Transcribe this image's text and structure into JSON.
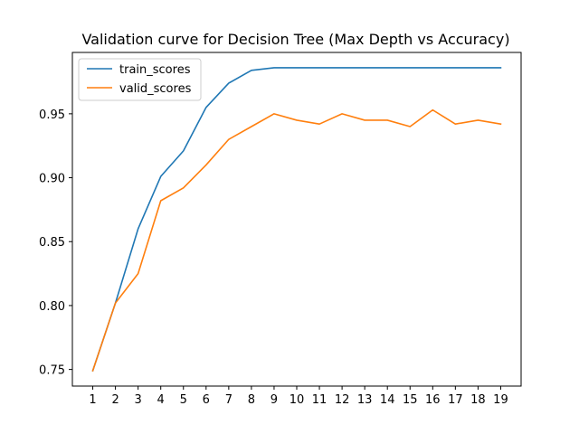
{
  "chart_data": {
    "type": "line",
    "title": "Validation curve for Decision Tree (Max Depth vs Accuracy)",
    "xlabel": "",
    "ylabel": "",
    "x": [
      1,
      2,
      3,
      4,
      5,
      6,
      7,
      8,
      9,
      10,
      11,
      12,
      13,
      14,
      15,
      16,
      17,
      18,
      19
    ],
    "x_tick_labels": [
      "1",
      "2",
      "3",
      "4",
      "5",
      "6",
      "7",
      "8",
      "9",
      "10",
      "11",
      "12",
      "13",
      "14",
      "15",
      "16",
      "17",
      "18",
      "19"
    ],
    "xlim": [
      0.1,
      19.9
    ],
    "ylim": [
      0.737,
      0.998
    ],
    "y_ticks": [
      0.75,
      0.8,
      0.85,
      0.9,
      0.95
    ],
    "y_tick_labels": [
      "0.75",
      "0.80",
      "0.85",
      "0.90",
      "0.95"
    ],
    "grid": false,
    "legend_position": "top-left",
    "series": [
      {
        "name": "train_scores",
        "color": "#1f77b4",
        "values": [
          0.749,
          0.802,
          0.86,
          0.901,
          0.921,
          0.955,
          0.974,
          0.984,
          0.986,
          0.986,
          0.986,
          0.986,
          0.986,
          0.986,
          0.986,
          0.986,
          0.986,
          0.986,
          0.986
        ]
      },
      {
        "name": "valid_scores",
        "color": "#ff7f0e",
        "values": [
          0.749,
          0.802,
          0.825,
          0.882,
          0.892,
          0.91,
          0.93,
          0.94,
          0.95,
          0.945,
          0.942,
          0.95,
          0.945,
          0.945,
          0.94,
          0.953,
          0.942,
          0.945,
          0.942
        ]
      }
    ]
  }
}
